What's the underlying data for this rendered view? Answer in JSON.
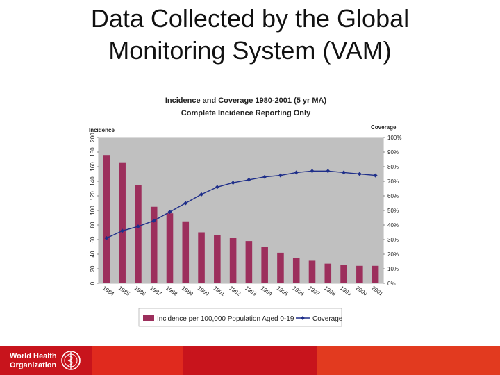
{
  "slide": {
    "title_line1": "Data Collected by the Global",
    "title_line2": "Monitoring System (VAM)"
  },
  "footer": {
    "org_line1": "World Health",
    "org_line2": "Organization",
    "colors": {
      "dark": "#c8141c",
      "mid": "#e02a1e",
      "light": "#e23a1f"
    }
  },
  "chart_data": {
    "type": "bar",
    "title": "Incidence and Coverage 1980-2001 (5 yr MA)",
    "subtitle": "Complete Incidence Reporting Only",
    "categories": [
      "1984",
      "1985",
      "1986",
      "1987",
      "1988",
      "1989",
      "1990",
      "1991",
      "1992",
      "1993",
      "1994",
      "1995",
      "1996",
      "1997",
      "1998",
      "1999",
      "2000",
      "2001"
    ],
    "series": [
      {
        "name": "Incidence per 100,000 Population Aged 0-19",
        "axis": "left",
        "kind": "bar",
        "color": "#9c2f5c",
        "values": [
          176,
          166,
          135,
          105,
          96,
          85,
          70,
          66,
          62,
          58,
          50,
          42,
          35,
          31,
          27,
          25,
          24,
          24
        ]
      },
      {
        "name": "Coverage",
        "axis": "right",
        "kind": "line",
        "color": "#1f2f8a",
        "values": [
          31,
          36,
          39,
          43,
          49,
          55,
          61,
          66,
          69,
          71,
          73,
          74,
          76,
          77,
          77,
          76,
          75,
          74
        ]
      }
    ],
    "ylabel_left": "Incidence",
    "ylabel_right": "Coverage",
    "ylim_left": [
      0,
      200
    ],
    "yticks_left": [
      "0",
      "20",
      "40",
      "60",
      "80",
      "100",
      "120",
      "140",
      "160",
      "180",
      "200"
    ],
    "ylim_right": [
      0,
      100
    ],
    "yticks_right": [
      "0%",
      "10%",
      "20%",
      "30%",
      "40%",
      "50%",
      "60%",
      "70%",
      "80%",
      "90%",
      "100%"
    ],
    "plot_background": "#c0c0c0",
    "grid": false,
    "legend_position": "bottom"
  }
}
